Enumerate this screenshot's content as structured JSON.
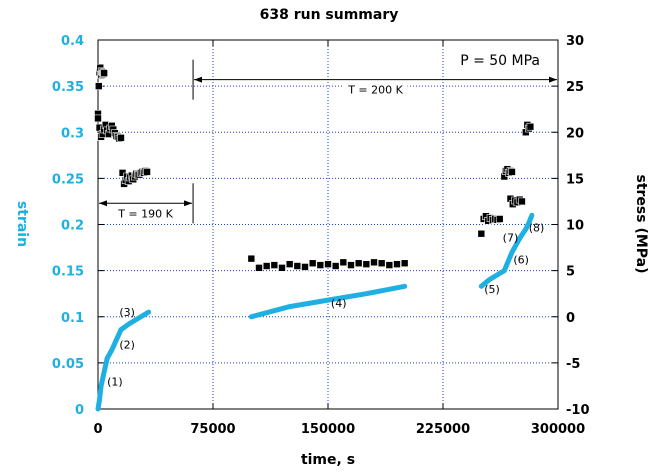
{
  "chart_data": {
    "type": "scatter",
    "title": "638 run summary",
    "xlabel": "time, s",
    "ylabel_left": "strain",
    "ylabel_right": "stress (MPa)",
    "xlim": [
      0,
      300000
    ],
    "ylim_left": [
      0,
      0.4
    ],
    "ylim_right": [
      -10,
      30
    ],
    "x_ticks": [
      0,
      75000,
      150000,
      225000,
      300000
    ],
    "left_ticks": [
      0,
      0.05,
      0.1,
      0.15,
      0.2,
      0.25,
      0.3,
      0.35,
      0.4
    ],
    "right_ticks": [
      -10,
      -5,
      0,
      5,
      10,
      15,
      20,
      25,
      30
    ],
    "grid": true,
    "colors": {
      "strain": "#1fb0e3",
      "stress": "#000000"
    },
    "annotations": {
      "pressure": "P = 50 MPa",
      "t200": "T = 200 K",
      "t190": "T = 190 K"
    },
    "ranges": [
      {
        "label": "T = 200 K",
        "x0": 62000,
        "x1": 300000,
        "stress": 25.7
      },
      {
        "label": "T = 190 K",
        "x0": 0,
        "x1": 62000,
        "stress": 12.3
      }
    ],
    "segment_labels": [
      {
        "text": "(1)",
        "x": 11000,
        "strain": 0.03
      },
      {
        "text": "(2)",
        "x": 19000,
        "strain": 0.07
      },
      {
        "text": "(3)",
        "x": 19000,
        "strain": 0.105
      },
      {
        "text": "(4)",
        "x": 157000,
        "strain": 0.115
      },
      {
        "text": "(5)",
        "x": 257000,
        "strain": 0.13
      },
      {
        "text": "(6)",
        "x": 276000,
        "strain": 0.162
      },
      {
        "text": "(7)",
        "x": 269000,
        "strain": 0.186
      },
      {
        "text": "(8)",
        "x": 286000,
        "strain": 0.197
      }
    ],
    "series": [
      {
        "name": "strain",
        "axis": "left",
        "segments": [
          {
            "x": [
              0,
              1000,
              2000,
              4000,
              6000
            ],
            "y": [
              0,
              0.01,
              0.025,
              0.04,
              0.055
            ]
          },
          {
            "x": [
              6000,
              9000,
              12000,
              15000
            ],
            "y": [
              0.055,
              0.064,
              0.075,
              0.086
            ]
          },
          {
            "x": [
              15000,
              20000,
              25000,
              30000,
              33000
            ],
            "y": [
              0.086,
              0.092,
              0.097,
              0.102,
              0.105
            ]
          },
          {
            "x": [
              100000,
              125000,
              150000,
              175000,
              200000
            ],
            "y": [
              0.1,
              0.111,
              0.118,
              0.125,
              0.133
            ]
          },
          {
            "x": [
              250000,
              255000,
              260000,
              265000
            ],
            "y": [
              0.133,
              0.14,
              0.145,
              0.15
            ]
          },
          {
            "x": [
              265000,
              270000,
              275000
            ],
            "y": [
              0.15,
              0.17,
              0.185
            ]
          },
          {
            "x": [
              275000,
              277000,
              279000
            ],
            "y": [
              0.185,
              0.19,
              0.195
            ]
          },
          {
            "x": [
              279000,
              281000,
              283000
            ],
            "y": [
              0.195,
              0.202,
              0.21
            ]
          }
        ]
      },
      {
        "name": "stress",
        "axis": "right",
        "segments": [
          {
            "x": [
              0,
              500,
              1000,
              1500,
              2000,
              2500,
              3000,
              3500,
              4000
            ],
            "y": [
              22,
              25,
              26.5,
              27,
              26.2,
              26.6,
              26.3,
              26.5,
              26.4
            ]
          },
          {
            "x": [
              0,
              1000,
              2000,
              3000,
              4000,
              5000,
              6000,
              7000,
              8000,
              9000,
              10000,
              11000,
              12000,
              13000,
              14000,
              15000
            ],
            "y": [
              21.5,
              20.5,
              19.5,
              19.8,
              20.3,
              20.8,
              20.2,
              19.8,
              20.4,
              20.7,
              20.3,
              19.9,
              19.6,
              19.5,
              19.3,
              19.4
            ]
          },
          {
            "x": [
              16000,
              17000,
              18000,
              19000,
              20000,
              21000,
              22000,
              23000,
              24000,
              25000,
              26000,
              27000,
              28000,
              29000,
              30000,
              31000,
              32000
            ],
            "y": [
              15.6,
              14.4,
              14.8,
              15.2,
              14.7,
              15.1,
              15.3,
              14.9,
              15.2,
              15.5,
              15.4,
              15.4,
              15.6,
              15.7,
              15.6,
              15.8,
              15.7
            ]
          },
          {
            "x": [
              100000,
              105000,
              110000,
              115000,
              120000,
              125000,
              130000,
              135000,
              140000,
              145000,
              150000,
              155000,
              160000,
              165000,
              170000,
              175000,
              180000,
              185000,
              190000,
              195000,
              200000
            ],
            "y": [
              6.3,
              5.3,
              5.5,
              5.6,
              5.3,
              5.7,
              5.5,
              5.4,
              5.8,
              5.6,
              5.7,
              5.5,
              5.9,
              5.6,
              5.8,
              5.7,
              5.9,
              5.8,
              5.6,
              5.7,
              5.8
            ]
          },
          {
            "x": [
              250000,
              251500,
              253000,
              254500,
              256000,
              257500,
              259000,
              260500,
              262000
            ],
            "y": [
              9,
              10.6,
              10.9,
              10.4,
              10.7,
              10.5,
              10.6,
              10.5,
              10.6
            ]
          },
          {
            "x": [
              265000,
              266000,
              267000,
              268000,
              269000,
              270000
            ],
            "y": [
              15.2,
              15.8,
              16,
              15.6,
              15.8,
              15.7
            ]
          },
          {
            "x": [
              269000,
              270500,
              272000,
              273500,
              275000,
              276500
            ],
            "y": [
              12.8,
              12.2,
              12.6,
              12.4,
              12.7,
              12.5
            ]
          },
          {
            "x": [
              279000,
              280000,
              281000,
              282000
            ],
            "y": [
              20,
              20.8,
              20.4,
              20.6
            ]
          }
        ]
      }
    ]
  }
}
